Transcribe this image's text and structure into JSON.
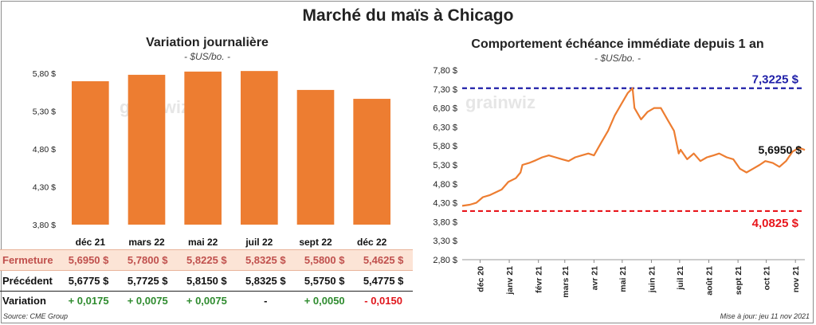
{
  "title": "Marché du maïs à Chicago",
  "left_chart": {
    "title": "Variation journalière",
    "subtitle": "- $US/bo. -"
  },
  "right_chart": {
    "title": "Comportement échéance immédiate depuis 1 an",
    "subtitle": "- $US/bo. -"
  },
  "watermark": "grainwiz",
  "table": {
    "rows": [
      {
        "label": "Fermeture",
        "values": [
          "5,6950 $",
          "5,7800 $",
          "5,8225 $",
          "5,8325 $",
          "5,5800 $",
          "5,4625 $"
        ]
      },
      {
        "label": "Précédent",
        "values": [
          "5,6775 $",
          "5,7725 $",
          "5,8150 $",
          "5,8325 $",
          "5,5750 $",
          "5,4775 $"
        ]
      },
      {
        "label": "Variation",
        "values": [
          "+ 0,0175",
          "+ 0,0075",
          "+ 0,0075",
          "-",
          "+ 0,0050",
          "- 0,0150"
        ]
      }
    ]
  },
  "source": "Source: CME Group",
  "updated": "Mise à jour: jeu 11 nov 2021",
  "colors": {
    "bar": "#ed7d31",
    "line": "#ed7d31",
    "high_line": "#1f1fa8",
    "low_line": "#e8161c",
    "positive": "#2e8b2e",
    "negative": "#e0161c"
  },
  "chart_data": [
    {
      "type": "bar",
      "categories": [
        "déc 21",
        "mars 22",
        "mai 22",
        "juil 22",
        "sept 22",
        "déc 22"
      ],
      "values": [
        5.695,
        5.78,
        5.8225,
        5.8325,
        5.58,
        5.4625
      ],
      "ylim": [
        3.8,
        5.8
      ],
      "yticks": [
        3.8,
        4.3,
        4.8,
        5.3,
        5.8
      ],
      "ytick_labels": [
        "3,80 $",
        "4,30 $",
        "4,80 $",
        "5,30 $",
        "5,80 $"
      ],
      "grid": false
    },
    {
      "type": "line",
      "xlabels": [
        "déc 20",
        "janv 21",
        "févr 21",
        "mars 21",
        "avr 21",
        "mai 21",
        "juin 21",
        "juil 21",
        "août 21",
        "sept 21",
        "oct 21",
        "nov 21"
      ],
      "x": [
        "2020-11-12",
        "2020-11-20",
        "2020-11-27",
        "2020-12-04",
        "2020-12-11",
        "2020-12-18",
        "2020-12-24",
        "2020-12-31",
        "2021-01-08",
        "2021-01-13",
        "2021-01-15",
        "2021-01-22",
        "2021-01-29",
        "2021-02-05",
        "2021-02-12",
        "2021-02-19",
        "2021-02-26",
        "2021-03-05",
        "2021-03-12",
        "2021-03-19",
        "2021-03-26",
        "2021-04-01",
        "2021-04-09",
        "2021-04-16",
        "2021-04-23",
        "2021-04-30",
        "2021-05-07",
        "2021-05-12",
        "2021-05-14",
        "2021-05-21",
        "2021-05-28",
        "2021-06-04",
        "2021-06-11",
        "2021-06-18",
        "2021-06-25",
        "2021-06-30",
        "2021-07-02",
        "2021-07-09",
        "2021-07-16",
        "2021-07-23",
        "2021-07-30",
        "2021-08-06",
        "2021-08-12",
        "2021-08-20",
        "2021-08-27",
        "2021-09-03",
        "2021-09-10",
        "2021-09-17",
        "2021-09-24",
        "2021-09-30",
        "2021-10-08",
        "2021-10-15",
        "2021-10-22",
        "2021-10-29",
        "2021-11-05",
        "2021-11-11"
      ],
      "y": [
        4.22,
        4.25,
        4.3,
        4.45,
        4.5,
        4.58,
        4.65,
        4.85,
        4.95,
        5.1,
        5.3,
        5.35,
        5.42,
        5.5,
        5.55,
        5.5,
        5.45,
        5.4,
        5.5,
        5.55,
        5.6,
        5.55,
        5.9,
        6.2,
        6.6,
        6.9,
        7.2,
        7.3225,
        6.8,
        6.5,
        6.7,
        6.8,
        6.8,
        6.5,
        6.2,
        5.6,
        5.7,
        5.45,
        5.6,
        5.4,
        5.5,
        5.55,
        5.6,
        5.5,
        5.45,
        5.2,
        5.1,
        5.2,
        5.3,
        5.4,
        5.35,
        5.25,
        5.4,
        5.65,
        5.75,
        5.695
      ],
      "ylim": [
        2.8,
        7.8
      ],
      "yticks": [
        2.8,
        3.3,
        3.8,
        4.3,
        4.8,
        5.3,
        5.8,
        6.3,
        6.8,
        7.3,
        7.8
      ],
      "ytick_labels": [
        "2,80 $",
        "3,30 $",
        "3,80 $",
        "4,30 $",
        "4,80 $",
        "5,30 $",
        "5,80 $",
        "6,30 $",
        "6,80 $",
        "7,30 $",
        "7,80 $"
      ],
      "high": 7.3225,
      "high_label": "7,3225 $",
      "low": 4.0825,
      "low_label": "4,0825 $",
      "last": 5.695,
      "last_label": "5,6950 $",
      "grid": false
    }
  ]
}
